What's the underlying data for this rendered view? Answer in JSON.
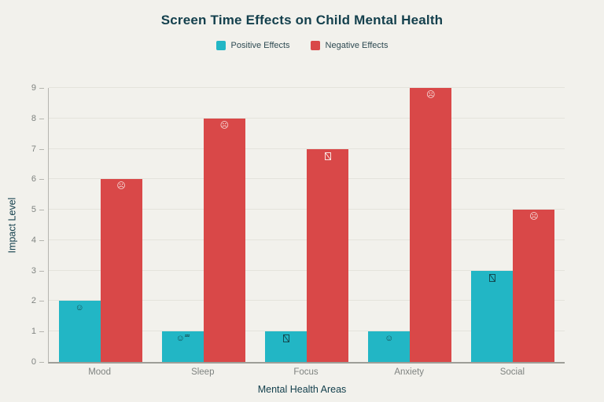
{
  "chart_data": {
    "type": "bar",
    "title": "Screen Time Effects on Child Mental Health",
    "xlabel": "Mental Health Areas",
    "ylabel": "Impact Level",
    "categories": [
      "Mood",
      "Sleep",
      "Focus",
      "Anxiety",
      "Social"
    ],
    "series": [
      {
        "name": "Positive Effects",
        "color": "#22b6c5",
        "icon_color": "#134b52",
        "values": [
          2,
          1,
          1,
          1,
          3
        ],
        "icons": [
          {
            "name": "smiling-face-icon",
            "glyph": "☺"
          },
          {
            "name": "sleeping-face-icon",
            "glyph": "☺",
            "sup": "zzz"
          },
          {
            "name": "missing-glyph-icon",
            "glyph": "tofu"
          },
          {
            "name": "smiling-face-icon",
            "glyph": "☺"
          },
          {
            "name": "missing-glyph-icon",
            "glyph": "tofu"
          }
        ]
      },
      {
        "name": "Negative Effects",
        "color": "#d94848",
        "icon_color": "#f8e3e0",
        "values": [
          6,
          8,
          7,
          9,
          5
        ],
        "icons": [
          {
            "name": "crying-face-icon",
            "glyph": "☹"
          },
          {
            "name": "weary-face-icon",
            "glyph": "☹"
          },
          {
            "name": "missing-glyph-icon",
            "glyph": "tofu"
          },
          {
            "name": "fearful-face-icon",
            "glyph": "☹"
          },
          {
            "name": "expressionless-face-icon",
            "glyph": "☹"
          }
        ]
      }
    ],
    "ylim": [
      0,
      9
    ],
    "yticks": [
      "0",
      "1",
      "2",
      "3",
      "4",
      "5",
      "6",
      "7",
      "8",
      "9"
    ],
    "grid": true,
    "legend_position": "top-center"
  },
  "colors": {
    "background": "#f2f1ec",
    "title": "#14404d",
    "tick_label": "#7f8380",
    "gridline": "#e4e3dc",
    "axis_line": "#9e9e98"
  }
}
